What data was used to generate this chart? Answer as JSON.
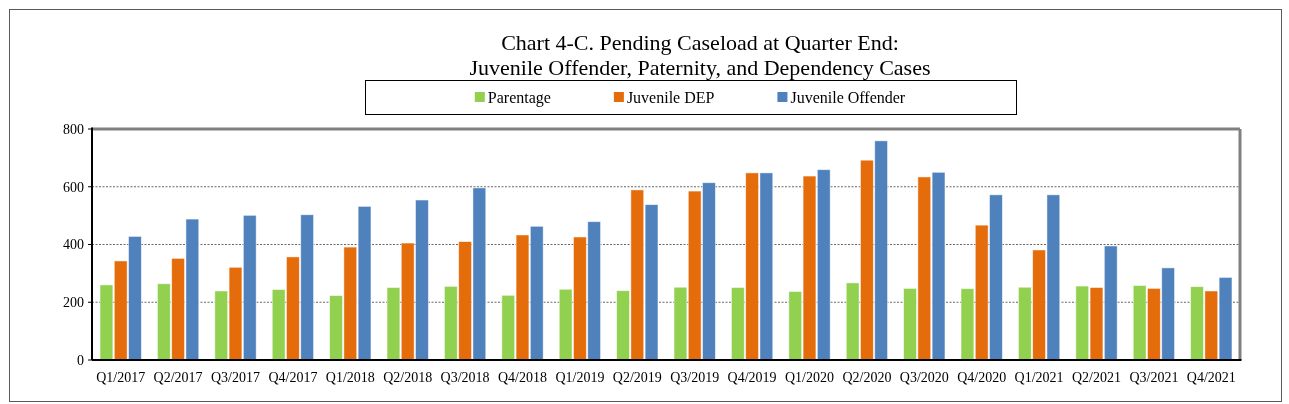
{
  "chart_data": {
    "type": "bar",
    "title": "Chart 4-C. Pending Caseload at Quarter End:\nJuvenile Offender, Paternity, and Dependency Cases",
    "categories": [
      "Q1/2017",
      "Q2/2017",
      "Q3/2017",
      "Q4/2017",
      "Q1/2018",
      "Q2/2018",
      "Q3/2018",
      "Q4/2018",
      "Q1/2019",
      "Q2/2019",
      "Q3/2019",
      "Q4/2019",
      "Q1/2020",
      "Q2/2020",
      "Q3/2020",
      "Q4/2020",
      "Q1/2021",
      "Q2/2021",
      "Q3/2021",
      "Q4/2021"
    ],
    "series": [
      {
        "name": "Parentage",
        "color": "#92d050",
        "values": [
          260,
          264,
          239,
          244,
          223,
          251,
          255,
          224,
          245,
          240,
          252,
          251,
          237,
          267,
          248,
          247,
          252,
          256,
          258,
          254
        ]
      },
      {
        "name": "Juvenile DEP",
        "color": "#e46c0a",
        "values": [
          343,
          352,
          321,
          357,
          391,
          405,
          410,
          433,
          426,
          589,
          585,
          648,
          637,
          692,
          634,
          467,
          381,
          251,
          248,
          239
        ]
      },
      {
        "name": "Juvenile Offender",
        "color": "#4f81bd",
        "values": [
          428,
          488,
          501,
          503,
          532,
          554,
          596,
          463,
          479,
          538,
          614,
          648,
          659,
          759,
          650,
          572,
          572,
          395,
          319,
          286
        ]
      }
    ],
    "ylim": [
      0,
      800
    ],
    "yticks": [
      0,
      200,
      400,
      600,
      800
    ],
    "grid": "y",
    "legend": "top"
  }
}
